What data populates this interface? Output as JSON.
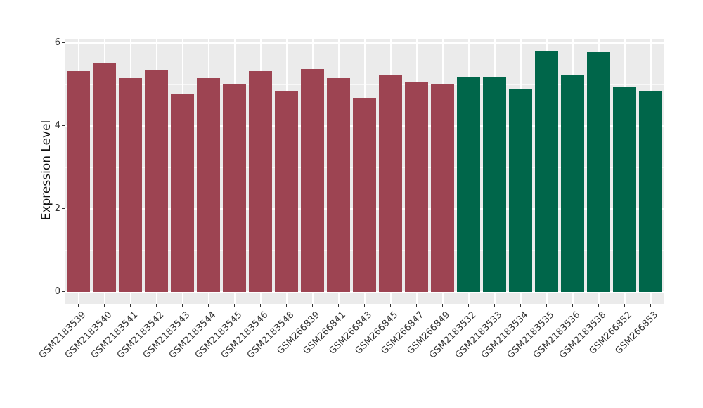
{
  "chart_data": {
    "type": "bar",
    "title": "",
    "xlabel": "",
    "ylabel": "Expression Level",
    "yticks": [
      0,
      2,
      4,
      6
    ],
    "yticks_minor": [
      1,
      3,
      5
    ],
    "ylim": [
      -0.29,
      6.08
    ],
    "grid": "on",
    "legend": "none",
    "panel_background": "#ebebeb",
    "gridline_color": "#ffffff",
    "tick_color": "#333333",
    "categories": [
      "GSM2183539",
      "GSM2183540",
      "GSM2183541",
      "GSM2183542",
      "GSM2183543",
      "GSM2183544",
      "GSM2183545",
      "GSM2183546",
      "GSM2183548",
      "GSM266839",
      "GSM266841",
      "GSM266843",
      "GSM266845",
      "GSM266847",
      "GSM266849",
      "GSM2183532",
      "GSM2183533",
      "GSM2183534",
      "GSM2183535",
      "GSM2183536",
      "GSM2183538",
      "GSM266852",
      "GSM266853"
    ],
    "values": [
      5.31,
      5.5,
      5.14,
      5.33,
      4.78,
      5.14,
      5.0,
      5.32,
      4.84,
      5.36,
      5.15,
      4.68,
      5.24,
      5.07,
      5.01,
      5.16,
      5.16,
      4.89,
      5.79,
      5.21,
      5.77,
      4.95,
      4.83
    ],
    "bar_groups": [
      "maroon",
      "maroon",
      "maroon",
      "maroon",
      "maroon",
      "maroon",
      "maroon",
      "maroon",
      "maroon",
      "maroon",
      "maroon",
      "maroon",
      "maroon",
      "maroon",
      "maroon",
      "green",
      "green",
      "green",
      "green",
      "green",
      "green",
      "green",
      "green"
    ],
    "group_colors": {
      "maroon": "#9d4452",
      "green": "#00664a"
    }
  }
}
